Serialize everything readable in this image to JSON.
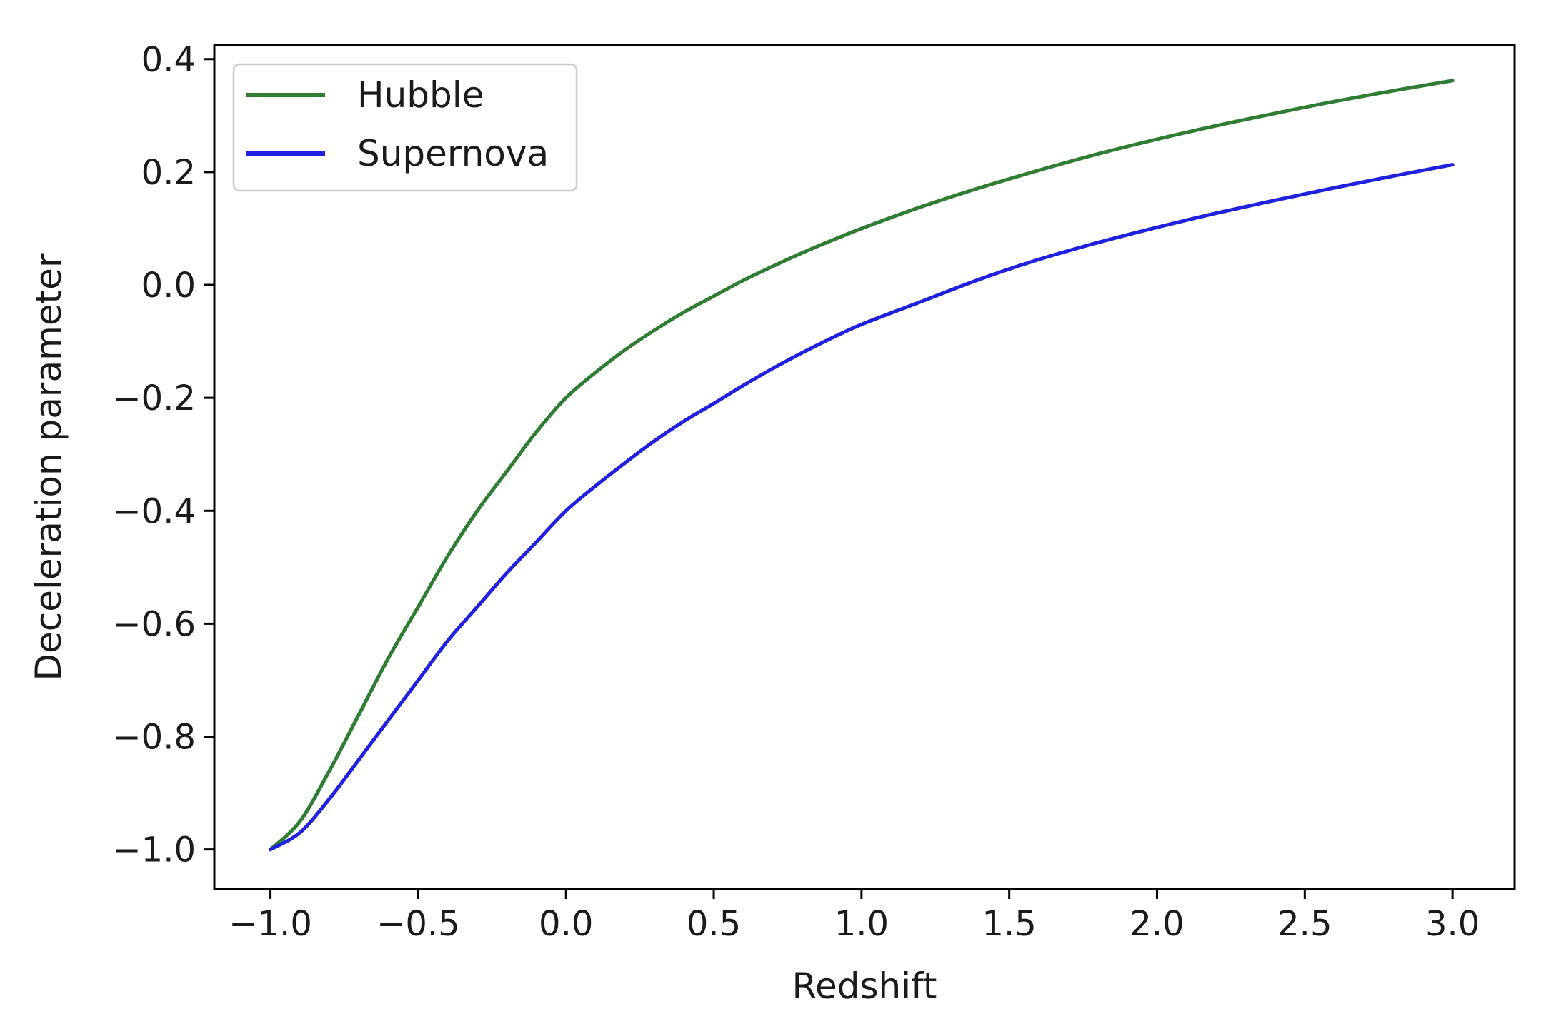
{
  "chart_data": {
    "type": "line",
    "title": "",
    "xlabel": "Redshift",
    "ylabel": "Deceleration parameter",
    "xlim": [
      -1.19,
      3.21
    ],
    "ylim": [
      -1.07,
      0.425
    ],
    "xticks": [
      -1.0,
      -0.5,
      0.0,
      0.5,
      1.0,
      1.5,
      2.0,
      2.5,
      3.0
    ],
    "xtick_labels": [
      "−1.0",
      "−0.5",
      "0.0",
      "0.5",
      "1.0",
      "1.5",
      "2.0",
      "2.5",
      "3.0"
    ],
    "yticks": [
      -1.0,
      -0.8,
      -0.6,
      -0.4,
      -0.2,
      0.0,
      0.2,
      0.4
    ],
    "ytick_labels": [
      "−1.0",
      "−0.8",
      "−0.6",
      "−0.4",
      "−0.2",
      "0.0",
      "0.2",
      "0.4"
    ],
    "grid": false,
    "legend": "top-left",
    "series": [
      {
        "name": "Hubble",
        "color": "#2e7d32",
        "x": [
          -1.0,
          -0.9,
          -0.8,
          -0.7,
          -0.6,
          -0.5,
          -0.4,
          -0.3,
          -0.2,
          -0.1,
          0.0,
          0.1,
          0.2,
          0.3,
          0.4,
          0.5,
          0.6,
          0.7,
          0.8,
          0.9,
          1.0,
          1.2,
          1.4,
          1.6,
          1.8,
          2.0,
          2.2,
          2.4,
          2.6,
          2.8,
          3.0
        ],
        "y": [
          -1.0,
          -0.95,
          -0.86,
          -0.76,
          -0.66,
          -0.57,
          -0.48,
          -0.4,
          -0.33,
          -0.26,
          -0.2,
          -0.155,
          -0.115,
          -0.08,
          -0.048,
          -0.02,
          0.008,
          0.033,
          0.057,
          0.079,
          0.1,
          0.138,
          0.172,
          0.203,
          0.232,
          0.258,
          0.282,
          0.304,
          0.325,
          0.344,
          0.362
        ]
      },
      {
        "name": "Supernova",
        "color": "#2020e0",
        "x": [
          -1.0,
          -0.9,
          -0.8,
          -0.7,
          -0.6,
          -0.5,
          -0.4,
          -0.3,
          -0.2,
          -0.1,
          0.0,
          0.1,
          0.2,
          0.3,
          0.4,
          0.5,
          0.6,
          0.7,
          0.8,
          0.9,
          1.0,
          1.2,
          1.4,
          1.6,
          1.8,
          2.0,
          2.2,
          2.4,
          2.6,
          2.8,
          3.0
        ],
        "y": [
          -1.0,
          -0.97,
          -0.91,
          -0.84,
          -0.77,
          -0.7,
          -0.63,
          -0.57,
          -0.51,
          -0.455,
          -0.4,
          -0.356,
          -0.315,
          -0.276,
          -0.241,
          -0.21,
          -0.178,
          -0.148,
          -0.12,
          -0.094,
          -0.07,
          -0.03,
          0.01,
          0.045,
          0.075,
          0.102,
          0.127,
          0.15,
          0.172,
          0.193,
          0.213
        ]
      }
    ]
  }
}
